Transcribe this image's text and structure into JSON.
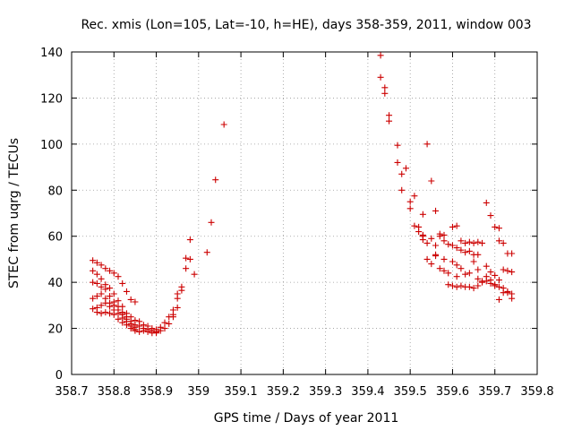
{
  "chart_data": {
    "type": "scatter",
    "title": "Rec. xmis (Lon=105, Lat=-10, h=HE), days 358-359, 2011, window 003",
    "xlabel": "GPS time / Days of year 2011",
    "ylabel": "STEC from uqrg / TECUs",
    "xlim": [
      358.7,
      359.8
    ],
    "ylim": [
      0,
      140
    ],
    "x_ticks": [
      358.7,
      358.8,
      358.9,
      359,
      359.1,
      359.2,
      359.3,
      359.4,
      359.5,
      359.6,
      359.7,
      359.8
    ],
    "x_tick_labels": [
      "358.7",
      "358.8",
      "358.9",
      "359",
      "359.1",
      "359.2",
      "359.3",
      "359.4",
      "359.5",
      "359.6",
      "359.7",
      "359.8"
    ],
    "y_ticks": [
      0,
      20,
      40,
      60,
      80,
      100,
      120,
      140
    ],
    "y_tick_labels": [
      "0",
      "20",
      "40",
      "60",
      "80",
      "100",
      "120",
      "140"
    ],
    "grid": true,
    "marker": "+",
    "color": "#cc0000",
    "points": [
      [
        358.75,
        49.5
      ],
      [
        358.76,
        48.5
      ],
      [
        358.77,
        47.5
      ],
      [
        358.78,
        46.0
      ],
      [
        358.79,
        45.0
      ],
      [
        358.8,
        44.0
      ],
      [
        358.81,
        42.5
      ],
      [
        358.82,
        39.5
      ],
      [
        358.83,
        36.0
      ],
      [
        358.84,
        32.5
      ],
      [
        358.85,
        31.5
      ],
      [
        358.75,
        45.0
      ],
      [
        358.76,
        43.5
      ],
      [
        358.77,
        41.5
      ],
      [
        358.78,
        39.0
      ],
      [
        358.79,
        37.5
      ],
      [
        358.8,
        35.0
      ],
      [
        358.81,
        32.0
      ],
      [
        358.82,
        29.5
      ],
      [
        358.83,
        26.5
      ],
      [
        358.84,
        25.0
      ],
      [
        358.85,
        23.5
      ],
      [
        358.75,
        40.0
      ],
      [
        358.76,
        39.5
      ],
      [
        358.77,
        38.0
      ],
      [
        358.78,
        37.0
      ],
      [
        358.79,
        34.0
      ],
      [
        358.8,
        31.5
      ],
      [
        358.81,
        29.5
      ],
      [
        358.82,
        27.0
      ],
      [
        358.83,
        25.0
      ],
      [
        358.84,
        23.0
      ],
      [
        358.85,
        21.5
      ],
      [
        358.75,
        33.0
      ],
      [
        358.76,
        34.0
      ],
      [
        358.77,
        35.0
      ],
      [
        358.78,
        33.0
      ],
      [
        358.79,
        31.0
      ],
      [
        358.8,
        30.0
      ],
      [
        358.81,
        28.0
      ],
      [
        358.82,
        26.0
      ],
      [
        358.83,
        24.0
      ],
      [
        358.84,
        22.0
      ],
      [
        358.85,
        20.5
      ],
      [
        358.75,
        28.5
      ],
      [
        358.76,
        29.0
      ],
      [
        358.77,
        30.0
      ],
      [
        358.78,
        31.0
      ],
      [
        358.79,
        29.5
      ],
      [
        358.8,
        28.0
      ],
      [
        358.81,
        26.5
      ],
      [
        358.82,
        24.5
      ],
      [
        358.83,
        23.0
      ],
      [
        358.84,
        21.0
      ],
      [
        358.85,
        19.5
      ],
      [
        358.76,
        27.0
      ],
      [
        358.77,
        26.5
      ],
      [
        358.78,
        27.0
      ],
      [
        358.79,
        26.5
      ],
      [
        358.8,
        26.0
      ],
      [
        358.81,
        24.0
      ],
      [
        358.82,
        22.5
      ],
      [
        358.83,
        21.5
      ],
      [
        358.84,
        20.0
      ],
      [
        358.85,
        19.0
      ],
      [
        358.86,
        18.5
      ],
      [
        358.87,
        19.0
      ],
      [
        358.88,
        18.5
      ],
      [
        358.89,
        18.0
      ],
      [
        358.9,
        18.5
      ],
      [
        358.91,
        19.0
      ],
      [
        358.92,
        20.0
      ],
      [
        358.93,
        22.0
      ],
      [
        358.94,
        25.0
      ],
      [
        358.95,
        29.0
      ],
      [
        358.86,
        21.0
      ],
      [
        358.87,
        20.0
      ],
      [
        358.88,
        19.5
      ],
      [
        358.89,
        19.0
      ],
      [
        358.9,
        19.5
      ],
      [
        358.91,
        20.5
      ],
      [
        358.92,
        22.5
      ],
      [
        358.93,
        25.0
      ],
      [
        358.94,
        28.0
      ],
      [
        358.95,
        33.0
      ],
      [
        358.86,
        23.0
      ],
      [
        358.87,
        21.5
      ],
      [
        358.88,
        21.0
      ],
      [
        358.89,
        20.0
      ],
      [
        358.9,
        18.0
      ],
      [
        358.94,
        26.0
      ],
      [
        358.95,
        35.0
      ],
      [
        358.96,
        36.5
      ],
      [
        358.96,
        38.0
      ],
      [
        358.97,
        46.0
      ],
      [
        358.97,
        50.5
      ],
      [
        358.98,
        50.0
      ],
      [
        358.98,
        58.5
      ],
      [
        358.99,
        43.5
      ],
      [
        359.02,
        53.0
      ],
      [
        359.03,
        66.0
      ],
      [
        359.04,
        84.5
      ],
      [
        359.06,
        108.5
      ],
      [
        359.43,
        138.5
      ],
      [
        359.43,
        129.0
      ],
      [
        359.44,
        124.5
      ],
      [
        359.44,
        122.0
      ],
      [
        359.45,
        112.5
      ],
      [
        359.45,
        110.0
      ],
      [
        359.47,
        99.5
      ],
      [
        359.47,
        92.0
      ],
      [
        359.48,
        87.0
      ],
      [
        359.48,
        80.0
      ],
      [
        359.49,
        89.5
      ],
      [
        359.5,
        75.0
      ],
      [
        359.5,
        72.0
      ],
      [
        359.51,
        77.5
      ],
      [
        359.51,
        64.5
      ],
      [
        359.52,
        64.0
      ],
      [
        359.53,
        69.5
      ],
      [
        359.53,
        60.0
      ],
      [
        359.54,
        100.0
      ],
      [
        359.55,
        84.0
      ],
      [
        359.56,
        71.0
      ],
      [
        359.57,
        61.0
      ],
      [
        359.58,
        60.5
      ],
      [
        359.6,
        64.0
      ],
      [
        359.61,
        64.5
      ],
      [
        359.62,
        58.0
      ],
      [
        359.63,
        57.0
      ],
      [
        359.64,
        57.5
      ],
      [
        359.65,
        57.0
      ],
      [
        359.66,
        57.5
      ],
      [
        359.68,
        74.5
      ],
      [
        359.69,
        69.0
      ],
      [
        359.7,
        64.0
      ],
      [
        359.71,
        58.0
      ],
      [
        359.72,
        57.0
      ],
      [
        359.73,
        52.5
      ],
      [
        359.74,
        52.5
      ],
      [
        359.52,
        62.0
      ],
      [
        359.53,
        58.5
      ],
      [
        359.54,
        57.0
      ],
      [
        359.55,
        59.0
      ],
      [
        359.56,
        56.0
      ],
      [
        359.57,
        60.0
      ],
      [
        359.58,
        58.0
      ],
      [
        359.59,
        56.5
      ],
      [
        359.6,
        56.0
      ],
      [
        359.61,
        55.0
      ],
      [
        359.62,
        54.0
      ],
      [
        359.63,
        53.0
      ],
      [
        359.64,
        53.5
      ],
      [
        359.65,
        52.0
      ],
      [
        359.66,
        52.0
      ],
      [
        359.68,
        47.0
      ],
      [
        359.69,
        44.5
      ],
      [
        359.7,
        43.0
      ],
      [
        359.71,
        41.0
      ],
      [
        359.72,
        45.5
      ],
      [
        359.73,
        45.0
      ],
      [
        359.74,
        44.5
      ],
      [
        359.54,
        50.0
      ],
      [
        359.55,
        48.0
      ],
      [
        359.56,
        52.0
      ],
      [
        359.57,
        46.0
      ],
      [
        359.58,
        45.0
      ],
      [
        359.59,
        44.0
      ],
      [
        359.6,
        49.0
      ],
      [
        359.61,
        47.5
      ],
      [
        359.62,
        46.0
      ],
      [
        359.63,
        43.5
      ],
      [
        359.64,
        44.0
      ],
      [
        359.65,
        49.0
      ],
      [
        359.66,
        41.5
      ],
      [
        359.67,
        40.0
      ],
      [
        359.68,
        40.5
      ],
      [
        359.69,
        39.5
      ],
      [
        359.7,
        39.0
      ],
      [
        359.71,
        38.0
      ],
      [
        359.72,
        37.5
      ],
      [
        359.73,
        35.5
      ],
      [
        359.74,
        35.0
      ],
      [
        359.59,
        39.0
      ],
      [
        359.6,
        38.5
      ],
      [
        359.61,
        38.0
      ],
      [
        359.62,
        38.5
      ],
      [
        359.63,
        38.0
      ],
      [
        359.64,
        38.0
      ],
      [
        359.65,
        37.5
      ],
      [
        359.66,
        38.5
      ],
      [
        359.67,
        40.5
      ],
      [
        359.68,
        42.5
      ],
      [
        359.69,
        41.0
      ],
      [
        359.7,
        38.5
      ],
      [
        359.71,
        32.5
      ],
      [
        359.72,
        35.5
      ],
      [
        359.73,
        36.0
      ],
      [
        359.74,
        33.0
      ],
      [
        359.53,
        60.5
      ],
      [
        359.56,
        51.5
      ],
      [
        359.58,
        50.0
      ],
      [
        359.61,
        42.5
      ],
      [
        359.66,
        45.5
      ],
      [
        359.67,
        57.0
      ],
      [
        359.71,
        63.5
      ]
    ]
  }
}
